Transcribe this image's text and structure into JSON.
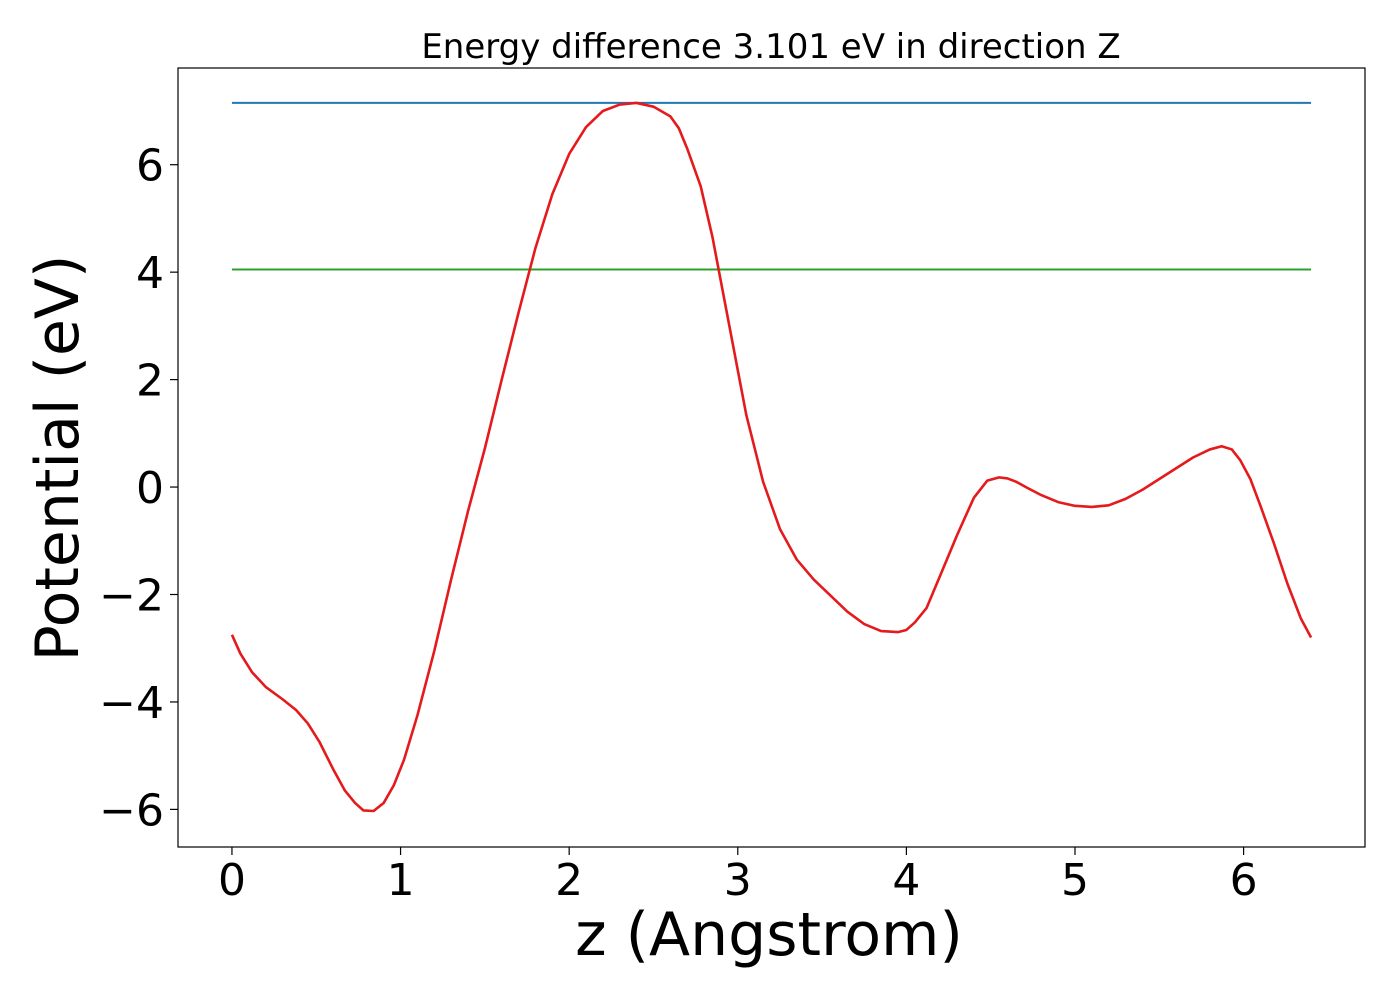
{
  "chart_data": {
    "type": "line",
    "title": "Energy difference 3.101 eV in direction Z",
    "xlabel": "z (Angstrom)",
    "ylabel": "Potential (eV)",
    "xlim": [
      -0.32,
      6.72
    ],
    "ylim": [
      -6.7,
      7.8
    ],
    "x_ticks": [
      0,
      1,
      2,
      3,
      4,
      5,
      6
    ],
    "x_tick_labels": [
      "0",
      "1",
      "2",
      "3",
      "4",
      "5",
      "6"
    ],
    "y_ticks": [
      -6,
      -4,
      -2,
      0,
      2,
      4,
      6
    ],
    "y_tick_labels": [
      "−6",
      "−4",
      "−2",
      "0",
      "2",
      "4",
      "6"
    ],
    "grid": false,
    "colors": {
      "potential": "#e41a1c",
      "upper_level": "#1f77b4",
      "lower_level": "#2ca02c"
    },
    "series": [
      {
        "key": "potential",
        "x": [
          0,
          0.05,
          0.12,
          0.2,
          0.3,
          0.38,
          0.45,
          0.52,
          0.6,
          0.67,
          0.73,
          0.78,
          0.84,
          0.9,
          0.96,
          1.02,
          1.1,
          1.2,
          1.3,
          1.4,
          1.5,
          1.6,
          1.7,
          1.8,
          1.9,
          2.0,
          2.1,
          2.2,
          2.3,
          2.4,
          2.5,
          2.6,
          2.65,
          2.7,
          2.78,
          2.85,
          2.95,
          3.05,
          3.15,
          3.25,
          3.35,
          3.45,
          3.55,
          3.65,
          3.75,
          3.85,
          3.95,
          4.0,
          4.05,
          4.12,
          4.2,
          4.3,
          4.4,
          4.48,
          4.55,
          4.6,
          4.65,
          4.72,
          4.8,
          4.9,
          5.0,
          5.1,
          5.2,
          5.3,
          5.4,
          5.5,
          5.6,
          5.7,
          5.8,
          5.87,
          5.93,
          5.98,
          6.04,
          6.1,
          6.18,
          6.26,
          6.34,
          6.4
        ],
        "y": [
          -2.75,
          -3.1,
          -3.45,
          -3.72,
          -3.95,
          -4.15,
          -4.4,
          -4.75,
          -5.25,
          -5.65,
          -5.88,
          -6.02,
          -6.03,
          -5.88,
          -5.55,
          -5.08,
          -4.25,
          -3.05,
          -1.72,
          -0.45,
          0.72,
          2.0,
          3.25,
          4.45,
          5.45,
          6.2,
          6.7,
          7.0,
          7.12,
          7.15,
          7.08,
          6.9,
          6.68,
          6.3,
          5.6,
          4.65,
          3.0,
          1.35,
          0.1,
          -0.78,
          -1.35,
          -1.72,
          -2.02,
          -2.32,
          -2.55,
          -2.68,
          -2.7,
          -2.66,
          -2.52,
          -2.25,
          -1.65,
          -0.9,
          -0.2,
          0.12,
          0.18,
          0.16,
          0.1,
          -0.02,
          -0.15,
          -0.28,
          -0.35,
          -0.37,
          -0.34,
          -0.22,
          -0.05,
          0.15,
          0.35,
          0.55,
          0.7,
          0.76,
          0.7,
          0.5,
          0.15,
          -0.35,
          -1.05,
          -1.8,
          -2.45,
          -2.8
        ]
      },
      {
        "key": "upper_level",
        "x": [
          0,
          6.4
        ],
        "y": [
          7.15,
          7.15
        ]
      },
      {
        "key": "lower_level",
        "x": [
          0,
          6.4
        ],
        "y": [
          4.05,
          4.05
        ]
      }
    ]
  }
}
